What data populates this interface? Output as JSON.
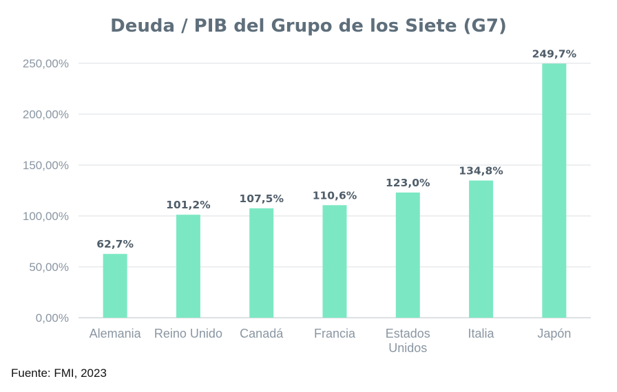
{
  "chart_data": {
    "type": "bar",
    "title": "Deuda / PIB del Grupo de los Siete (G7)",
    "categories": [
      [
        "Alemania"
      ],
      [
        "Reino Unido"
      ],
      [
        "Canadá"
      ],
      [
        "Francia"
      ],
      [
        "Estados",
        "Unidos"
      ],
      [
        "Italia"
      ],
      [
        "Japón"
      ]
    ],
    "values": [
      62.7,
      101.2,
      107.5,
      110.6,
      123.0,
      134.8,
      249.7
    ],
    "value_labels": [
      "62,7%",
      "101,2%",
      "107,5%",
      "110,6%",
      "123,0%",
      "134,8%",
      "249,7%"
    ],
    "y_ticks": [
      0,
      50,
      100,
      150,
      200,
      250
    ],
    "y_tick_labels": [
      "0,00%",
      "50,00%",
      "100,00%",
      "150,00%",
      "200,00%",
      "250,00%"
    ],
    "ylim": [
      0,
      250
    ],
    "grid": true,
    "bar_color": "#7be8c3",
    "grid_color": "#e2e5e8",
    "title_color": "#5e6e7b"
  },
  "source": "Fuente: FMI, 2023"
}
